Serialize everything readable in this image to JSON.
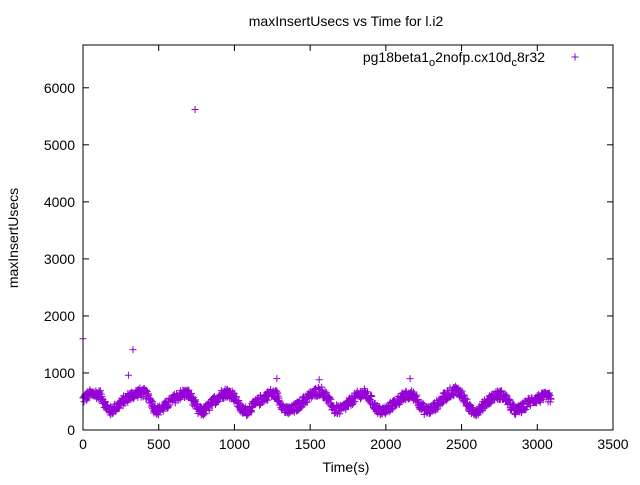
{
  "chart_data": {
    "type": "scatter",
    "title": "maxInsertUsecs vs Time for l.i2",
    "xlabel": "Time(s)",
    "ylabel": "maxInsertUsecs",
    "xlim": [
      0,
      3500
    ],
    "ylim": [
      0,
      6750
    ],
    "x_ticks": [
      0,
      500,
      1000,
      1500,
      2000,
      2500,
      3000,
      3500
    ],
    "y_ticks": [
      0,
      1000,
      2000,
      3000,
      4000,
      5000,
      6000
    ],
    "grid": false,
    "legend": {
      "position": "top-right",
      "label_parts": [
        "pg18beta1",
        "o",
        "2nofp.cx10d",
        "c",
        "8r32"
      ]
    },
    "marker": "+",
    "series_color": "#9400d3",
    "series": [
      {
        "name": "pg18beta1_o2nofp.cx10d_c8r32",
        "outliers": [
          [
            0,
            1600
          ],
          [
            300,
            960
          ],
          [
            330,
            1410
          ],
          [
            740,
            5620
          ],
          [
            1280,
            900
          ],
          [
            1560,
            880
          ],
          [
            2160,
            900
          ],
          [
            3070,
            620
          ]
        ],
        "trend": [
          [
            0,
            540
          ],
          [
            40,
            620
          ],
          [
            80,
            640
          ],
          [
            120,
            600
          ],
          [
            150,
            420
          ],
          [
            180,
            330
          ],
          [
            210,
            380
          ],
          [
            250,
            470
          ],
          [
            290,
            560
          ],
          [
            330,
            620
          ],
          [
            370,
            660
          ],
          [
            410,
            640
          ],
          [
            440,
            560
          ],
          [
            470,
            380
          ],
          [
            500,
            340
          ],
          [
            540,
            410
          ],
          [
            580,
            500
          ],
          [
            620,
            580
          ],
          [
            660,
            640
          ],
          [
            700,
            630
          ],
          [
            730,
            500
          ],
          [
            760,
            340
          ],
          [
            790,
            320
          ],
          [
            830,
            400
          ],
          [
            870,
            520
          ],
          [
            910,
            620
          ],
          [
            950,
            660
          ],
          [
            990,
            620
          ],
          [
            1020,
            480
          ],
          [
            1050,
            350
          ],
          [
            1080,
            330
          ],
          [
            1120,
            410
          ],
          [
            1160,
            500
          ],
          [
            1200,
            580
          ],
          [
            1240,
            640
          ],
          [
            1280,
            610
          ],
          [
            1310,
            450
          ],
          [
            1340,
            330
          ],
          [
            1380,
            350
          ],
          [
            1420,
            420
          ],
          [
            1460,
            520
          ],
          [
            1500,
            600
          ],
          [
            1540,
            670
          ],
          [
            1570,
            690
          ],
          [
            1600,
            620
          ],
          [
            1630,
            480
          ],
          [
            1660,
            360
          ],
          [
            1700,
            350
          ],
          [
            1740,
            430
          ],
          [
            1780,
            530
          ],
          [
            1820,
            620
          ],
          [
            1860,
            640
          ],
          [
            1900,
            540
          ],
          [
            1930,
            400
          ],
          [
            1960,
            330
          ],
          [
            2000,
            340
          ],
          [
            2040,
            430
          ],
          [
            2080,
            520
          ],
          [
            2120,
            580
          ],
          [
            2160,
            620
          ],
          [
            2200,
            580
          ],
          [
            2230,
            420
          ],
          [
            2260,
            340
          ],
          [
            2300,
            360
          ],
          [
            2340,
            450
          ],
          [
            2380,
            560
          ],
          [
            2420,
            650
          ],
          [
            2460,
            700
          ],
          [
            2500,
            640
          ],
          [
            2530,
            480
          ],
          [
            2560,
            350
          ],
          [
            2600,
            330
          ],
          [
            2640,
            420
          ],
          [
            2680,
            530
          ],
          [
            2720,
            600
          ],
          [
            2760,
            620
          ],
          [
            2800,
            540
          ],
          [
            2830,
            400
          ],
          [
            2860,
            330
          ],
          [
            2900,
            380
          ],
          [
            2940,
            480
          ],
          [
            2980,
            540
          ],
          [
            3020,
            560
          ],
          [
            3060,
            580
          ],
          [
            3090,
            560
          ]
        ]
      }
    ]
  }
}
